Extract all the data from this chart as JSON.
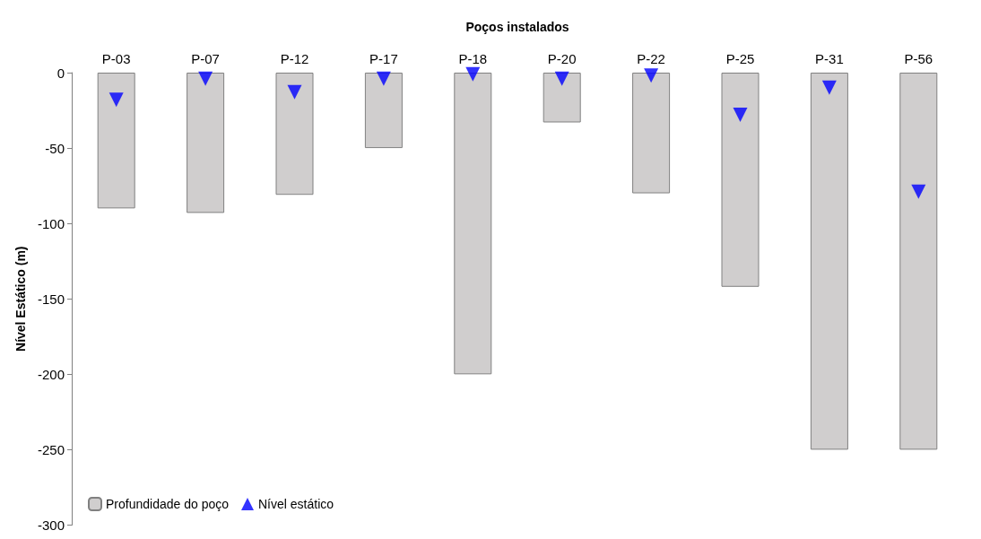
{
  "chart_data": {
    "type": "bar",
    "xlabel": "Poços instalados",
    "ylabel": "Nível Estático (m)",
    "categories": [
      "P-03",
      "P-07",
      "P-12",
      "P-17",
      "P-18",
      "P-20",
      "P-22",
      "P-25",
      "P-31",
      "P-56"
    ],
    "series": [
      {
        "name": "Profundidade do poço",
        "type": "bar",
        "color": "#d0cece",
        "values": [
          -90,
          -93,
          -81,
          -50,
          -200,
          -33,
          -80,
          -142,
          -250,
          -250
        ]
      },
      {
        "name": "Nível estático",
        "type": "scatter",
        "color": "#0000ff",
        "values": [
          -18,
          -4,
          -13,
          -4,
          -1,
          -4,
          -2,
          -28,
          -10,
          -79
        ]
      }
    ],
    "ylim": [
      -300,
      0
    ],
    "yticks": [
      -300,
      -250,
      -200,
      -150,
      -100,
      -50,
      0
    ],
    "grid": false,
    "legend": "bottom left",
    "marker": "triangle"
  }
}
